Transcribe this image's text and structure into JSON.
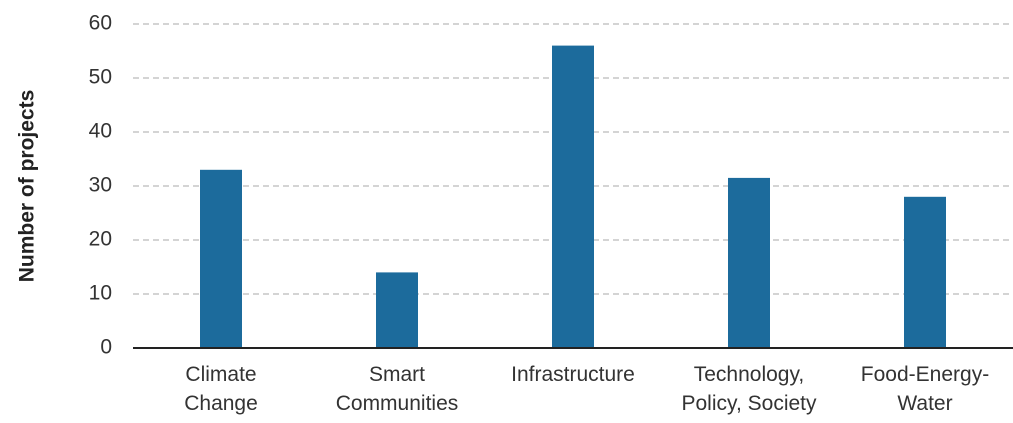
{
  "chart_data": {
    "type": "bar",
    "y_label": "Number of projects",
    "categories": [
      "Climate\nChange",
      "Smart\nCommunities",
      "Infrastructure",
      "Technology,\nPolicy, Society",
      "Food-Energy-\nWater"
    ],
    "values": [
      33,
      14,
      56,
      31.5,
      28
    ],
    "color": "#1c6b9c",
    "ylim": [
      0,
      60
    ],
    "yticks": [
      0,
      10,
      20,
      30,
      40,
      50,
      60
    ],
    "grid": true
  }
}
